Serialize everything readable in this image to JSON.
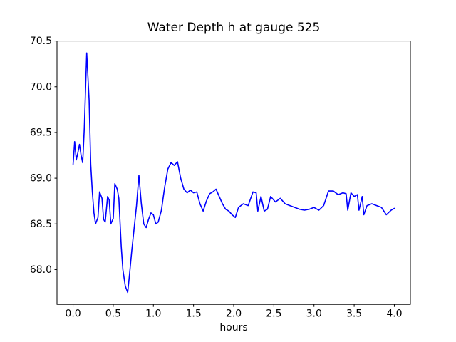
{
  "title": "Water Depth h at gauge 525",
  "chart_data": {
    "type": "line",
    "title": "Water Depth h at gauge 525",
    "xlabel": "hours",
    "ylabel": "",
    "legend": "none",
    "grid": false,
    "line_color": "#0000ff",
    "frame_color": "#000000",
    "xlim": [
      -0.2,
      4.2
    ],
    "ylim": [
      67.62,
      70.5
    ],
    "xticks": [
      0.0,
      0.5,
      1.0,
      1.5,
      2.0,
      2.5,
      3.0,
      3.5,
      4.0
    ],
    "xtick_labels": [
      "0.0",
      "0.5",
      "1.0",
      "1.5",
      "2.0",
      "2.5",
      "3.0",
      "3.5",
      "4.0"
    ],
    "yticks": [
      68.0,
      68.5,
      69.0,
      69.5,
      70.0,
      70.5
    ],
    "ytick_labels": [
      "68.0",
      "68.5",
      "69.0",
      "69.5",
      "70.0",
      "70.5"
    ],
    "x": [
      0.0,
      0.02,
      0.04,
      0.06,
      0.08,
      0.1,
      0.12,
      0.14,
      0.17,
      0.2,
      0.22,
      0.24,
      0.26,
      0.28,
      0.31,
      0.33,
      0.36,
      0.38,
      0.4,
      0.43,
      0.45,
      0.47,
      0.5,
      0.52,
      0.55,
      0.57,
      0.6,
      0.62,
      0.65,
      0.68,
      0.7,
      0.73,
      0.76,
      0.79,
      0.82,
      0.85,
      0.88,
      0.91,
      0.94,
      0.97,
      1.0,
      1.03,
      1.06,
      1.1,
      1.14,
      1.18,
      1.22,
      1.26,
      1.3,
      1.34,
      1.38,
      1.42,
      1.46,
      1.5,
      1.54,
      1.58,
      1.62,
      1.66,
      1.7,
      1.74,
      1.78,
      1.82,
      1.86,
      1.9,
      1.94,
      1.98,
      2.02,
      2.06,
      2.12,
      2.18,
      2.24,
      2.28,
      2.3,
      2.34,
      2.38,
      2.42,
      2.46,
      2.52,
      2.58,
      2.64,
      2.7,
      2.76,
      2.82,
      2.88,
      2.94,
      3.0,
      3.06,
      3.12,
      3.18,
      3.24,
      3.3,
      3.36,
      3.4,
      3.42,
      3.46,
      3.5,
      3.54,
      3.56,
      3.6,
      3.62,
      3.66,
      3.72,
      3.78,
      3.84,
      3.9,
      3.96,
      4.0
    ],
    "y": [
      69.15,
      69.4,
      69.2,
      69.28,
      69.37,
      69.25,
      69.17,
      69.55,
      70.37,
      69.85,
      69.15,
      68.85,
      68.62,
      68.5,
      68.57,
      68.85,
      68.78,
      68.55,
      68.52,
      68.8,
      68.76,
      68.5,
      68.56,
      68.94,
      68.88,
      68.78,
      68.25,
      68.0,
      67.82,
      67.75,
      67.92,
      68.2,
      68.45,
      68.7,
      69.03,
      68.72,
      68.5,
      68.46,
      68.55,
      68.62,
      68.6,
      68.5,
      68.52,
      68.65,
      68.9,
      69.1,
      69.17,
      69.14,
      69.18,
      69.0,
      68.88,
      68.84,
      68.87,
      68.84,
      68.85,
      68.72,
      68.64,
      68.75,
      68.83,
      68.85,
      68.88,
      68.8,
      68.72,
      68.66,
      68.64,
      68.6,
      68.57,
      68.68,
      68.72,
      68.7,
      68.85,
      68.84,
      68.64,
      68.8,
      68.64,
      68.66,
      68.8,
      68.74,
      68.78,
      68.72,
      68.7,
      68.68,
      68.66,
      68.65,
      68.66,
      68.68,
      68.65,
      68.7,
      68.86,
      68.86,
      68.82,
      68.84,
      68.83,
      68.65,
      68.84,
      68.8,
      68.82,
      68.65,
      68.8,
      68.6,
      68.7,
      68.72,
      68.7,
      68.68,
      68.6,
      68.65,
      68.67
    ]
  }
}
